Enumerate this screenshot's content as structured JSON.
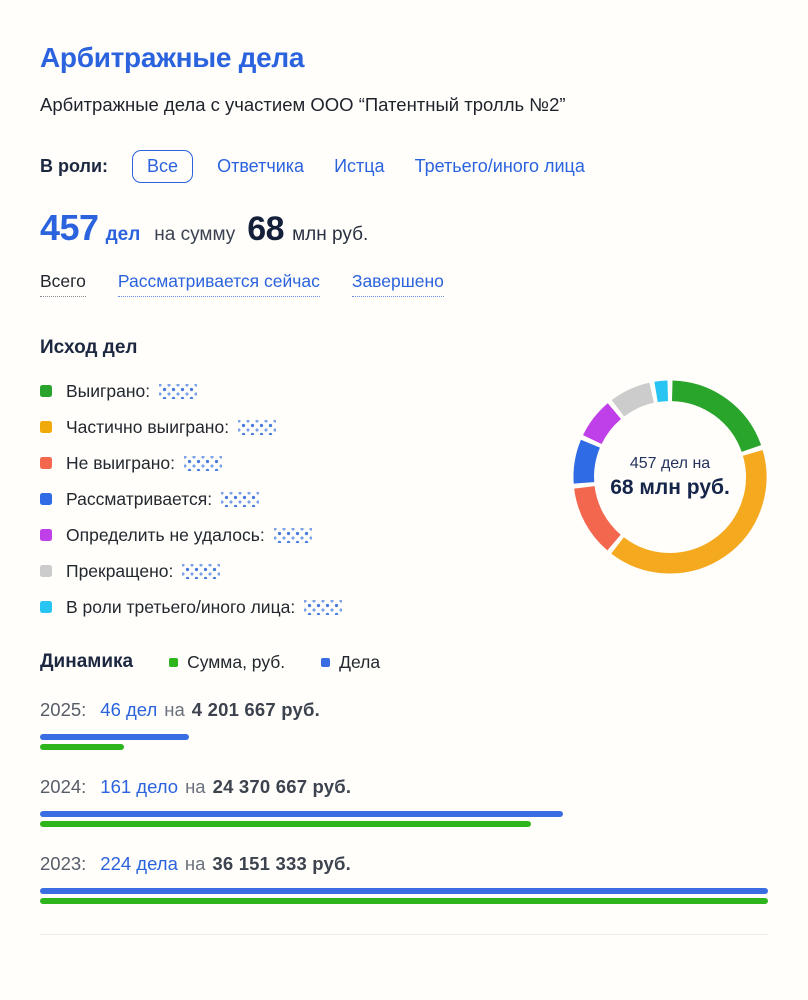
{
  "colors": {
    "accent_blue": "#2b63de",
    "navy": "#16254a",
    "bar_cases_blue": "#3a6ce2",
    "bar_amount_green": "#2eb51c"
  },
  "page": {
    "title": "Арбитражные дела",
    "subtitle": "Арбитражные дела с участием ООО “Патентный тролль №2”"
  },
  "role_filter": {
    "label": "В роли:",
    "options": [
      {
        "label": "Все",
        "selected": true
      },
      {
        "label": "Ответчика",
        "selected": false
      },
      {
        "label": "Истца",
        "selected": false
      },
      {
        "label": "Третьего/иного лица",
        "selected": false
      }
    ]
  },
  "summary": {
    "count": "457",
    "count_unit": "дел",
    "connector": "на сумму",
    "amount": "68",
    "amount_unit": "млн руб."
  },
  "status_tabs": [
    {
      "label": "Всего",
      "active": true
    },
    {
      "label": "Рассматривается сейчас",
      "active": false
    },
    {
      "label": "Завершено",
      "active": false
    }
  ],
  "outcomes": {
    "heading": "Исход дел",
    "items": [
      {
        "label": "Выиграно:",
        "color": "#29a32b",
        "value_hidden": true
      },
      {
        "label": "Частично выиграно:",
        "color": "#f2a90c",
        "value_hidden": true
      },
      {
        "label": "Не выиграно:",
        "color": "#f2674e",
        "value_hidden": true
      },
      {
        "label": "Рассматривается:",
        "color": "#2f6be4",
        "value_hidden": true
      },
      {
        "label": "Определить не удалось:",
        "color": "#bf3fe8",
        "value_hidden": true
      },
      {
        "label": "Прекращено:",
        "color": "#cccccc",
        "value_hidden": true
      },
      {
        "label": "В роли третьего/иного лица:",
        "color": "#29c5f2",
        "value_hidden": true
      }
    ]
  },
  "chart_data": [
    {
      "type": "pie",
      "variant": "donut",
      "title": "Исход дел",
      "center_label_line1": "457 дел на",
      "center_label_line2": "68 млн руб.",
      "note": "segment values are blurred/hidden in the UI; shares estimated from arc angles",
      "start_angle_deg": 1.5,
      "gap_deg": 3,
      "segments": [
        {
          "name": "Выиграно",
          "color": "#2aa52c",
          "share_pct": 19.5
        },
        {
          "name": "Частично выиграно",
          "color": "#f5a91f",
          "share_pct": 40.5
        },
        {
          "name": "Не выиграно",
          "color": "#f2674e",
          "share_pct": 12.0
        },
        {
          "name": "Рассматривается",
          "color": "#2f6be4",
          "share_pct": 7.5
        },
        {
          "name": "Определить не удалось",
          "color": "#bf3fe8",
          "share_pct": 6.8
        },
        {
          "name": "Прекращено",
          "color": "#cccccc",
          "share_pct": 7.0
        },
        {
          "name": "В роли третьего/иного лица",
          "color": "#29c5f2",
          "share_pct": 2.2
        }
      ]
    },
    {
      "type": "bar",
      "orientation": "horizontal",
      "title": "Динамика",
      "legend": [
        {
          "name": "Сумма, руб.",
          "color": "#2eb51c"
        },
        {
          "name": "Дела",
          "color": "#3a6ce2"
        }
      ],
      "max_cases": 224,
      "max_amount_rub": 36151333,
      "years": [
        {
          "year": "2025:",
          "cases_label": "46 дел",
          "na": "на",
          "amount_label": "4 201 667 руб.",
          "cases": 46,
          "amount_rub": 4201667
        },
        {
          "year": "2024:",
          "cases_label": "161 дело",
          "na": "на",
          "amount_label": "24 370 667 руб.",
          "cases": 161,
          "amount_rub": 24370667
        },
        {
          "year": "2023:",
          "cases_label": "224 дела",
          "na": "на",
          "amount_label": "36 151 333 руб.",
          "cases": 224,
          "amount_rub": 36151333
        }
      ]
    }
  ]
}
